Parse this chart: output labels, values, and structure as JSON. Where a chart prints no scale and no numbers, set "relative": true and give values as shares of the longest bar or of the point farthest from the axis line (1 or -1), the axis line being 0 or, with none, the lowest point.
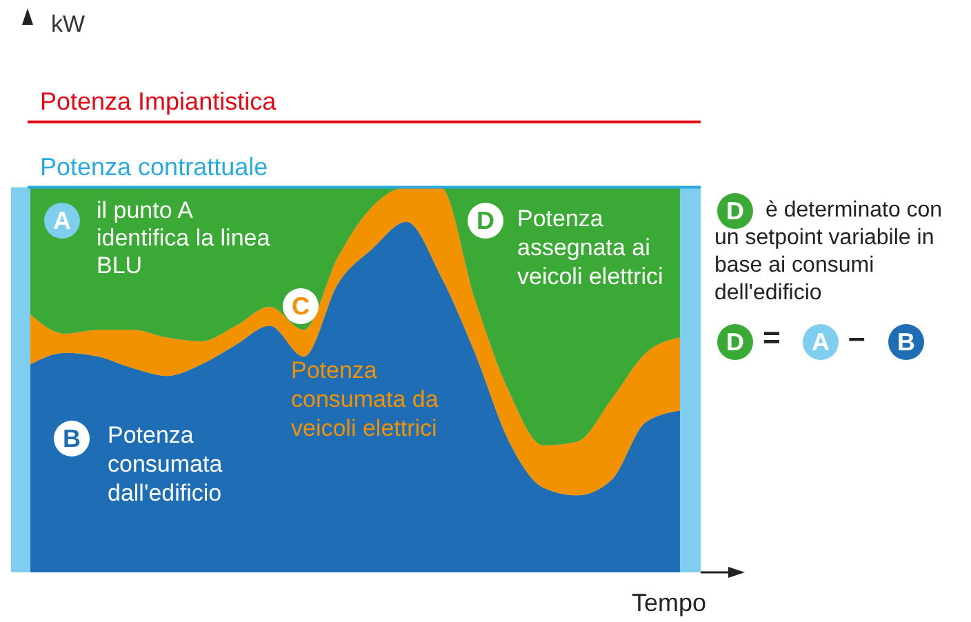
{
  "chart_data": {
    "type": "area",
    "stacked": true,
    "relative": true,
    "xlabel": "Tempo",
    "categories": [
      null,
      null,
      null,
      null,
      null,
      null,
      null,
      null,
      null,
      null,
      null,
      null,
      null,
      null,
      null,
      null,
      null,
      null,
      null,
      null
    ],
    "series": [
      {
        "name": "Potenza consumata dall'edificio",
        "color": "#1f6db5",
        "values": [
          0.54,
          0.57,
          0.56,
          0.53,
          0.51,
          0.54,
          0.59,
          0.64,
          0.56,
          0.75,
          0.84,
          0.91,
          0.77,
          0.57,
          0.34,
          0.22,
          0.2,
          0.24,
          0.39,
          0.42
        ]
      },
      {
        "name": "Potenza consumata da veicoli elettrici",
        "color": "#f39200",
        "values": [
          0.13,
          0.05,
          0.07,
          0.1,
          0.1,
          0.06,
          0.05,
          0.05,
          0.07,
          0.07,
          0.11,
          0.09,
          0.23,
          0.14,
          0.13,
          0.11,
          0.14,
          0.21,
          0.18,
          0.19
        ]
      },
      {
        "name": "Potenza assegnata ai veicoli elettrici",
        "color": "#3aa935",
        "values": [
          0.33,
          0.38,
          0.37,
          0.37,
          0.39,
          0.4,
          0.36,
          0.31,
          0.37,
          0.18,
          0.05,
          0,
          0,
          0.29,
          0.53,
          0.67,
          0.66,
          0.55,
          0.43,
          0.39
        ]
      }
    ],
    "ref_lines": [
      {
        "axis": "y",
        "value": 1.17,
        "label": "Potenza Impiantistica",
        "color": "#e30613"
      },
      {
        "axis": "y",
        "value": 1,
        "label": "Potenza contrattuale",
        "color": "#29a9e0"
      }
    ],
    "bands": [
      {
        "axis": "y",
        "from": 0,
        "to": 1,
        "color": "#7fcdef"
      }
    ],
    "annotations": [
      "A",
      "il punto A identifica la linea BLU",
      "B",
      "C",
      "D",
      "D",
      "è determinato con un setpoint variabile in base ai consumi dell'edificio",
      "D",
      "=",
      "A",
      "–",
      "B",
      "kW"
    ],
    "legend": false,
    "grid": false
  }
}
